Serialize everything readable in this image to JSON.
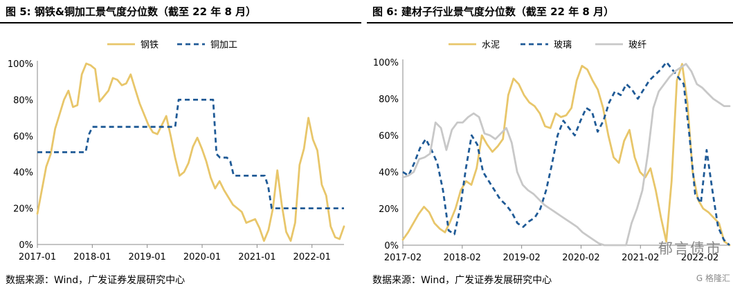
{
  "watermark": {
    "text": "郁言债市",
    "badge": "G 格隆汇"
  },
  "charts": [
    {
      "figure_title": "图 5:  钢铁&铜加工景气度分位数（截至 22 年 8 月）",
      "source": "数据来源：Wind，广发证券发展研究中心",
      "y_ticks": [
        "0%",
        "20%",
        "40%",
        "60%",
        "80%",
        "100%"
      ],
      "x_ticks": [
        "2017-01",
        "2018-01",
        "2019-01",
        "2020-01",
        "2021-01",
        "2022-01"
      ],
      "legend": [
        "钢铁",
        "铜加工"
      ]
    },
    {
      "figure_title": "图 6:  建材子行业景气度分位数（截至 22 年 8 月）",
      "source": "数据来源：Wind，广发证券发展研究中心",
      "y_ticks": [
        "0%",
        "20%",
        "40%",
        "60%",
        "80%",
        "100%"
      ],
      "x_ticks": [
        "2017-02",
        "2018-02",
        "2019-02",
        "2020-02",
        "2021-02",
        "2022-02"
      ],
      "legend": [
        "水泥",
        "玻璃",
        "玻纤"
      ]
    }
  ],
  "chart_data": [
    {
      "type": "line",
      "title": "图 5: 钢铁&铜加工景气度分位数（截至 22 年 8 月）",
      "x_start": "2017-01",
      "x_end": "2022-08",
      "x_ticks": [
        "2017-01",
        "2018-01",
        "2019-01",
        "2020-01",
        "2021-01",
        "2022-01"
      ],
      "ylim": [
        0,
        100
      ],
      "y_unit": "%",
      "legend_position": "top-center",
      "grid": false,
      "series": [
        {
          "name": "钢铁",
          "color": "#e8c66a",
          "style": "solid",
          "values": [
            17,
            30,
            43,
            50,
            64,
            72,
            80,
            85,
            76,
            77,
            94,
            100,
            99,
            97,
            79,
            82,
            85,
            92,
            91,
            88,
            89,
            94,
            86,
            78,
            72,
            66,
            62,
            61,
            66,
            71,
            60,
            48,
            38,
            40,
            45,
            54,
            59,
            53,
            46,
            37,
            31,
            35,
            30,
            26,
            22,
            20,
            18,
            12,
            13,
            14,
            9,
            2,
            8,
            20,
            41,
            22,
            7,
            2,
            12,
            44,
            53,
            70,
            58,
            52,
            33,
            27,
            10,
            4,
            3,
            10
          ]
        },
        {
          "name": "铜加工",
          "color": "#1f5a96",
          "style": "dashed",
          "values": [
            51,
            51,
            51,
            51,
            51,
            51,
            51,
            51,
            51,
            51,
            51,
            51,
            51,
            51,
            51,
            61,
            65,
            65,
            65,
            65,
            65,
            65,
            65,
            65,
            65,
            65,
            65,
            65,
            65,
            65,
            65,
            65,
            65,
            65,
            65,
            65,
            65,
            65,
            65,
            65,
            65,
            80,
            80,
            80,
            80,
            80,
            80,
            80,
            80,
            80,
            80,
            80,
            50,
            48,
            48,
            48,
            46,
            38,
            38,
            38,
            38,
            38,
            38,
            38,
            38,
            38,
            38,
            32,
            20,
            20,
            20,
            20,
            20,
            20,
            20,
            20,
            20,
            20,
            20,
            20,
            20,
            20,
            20,
            20,
            20,
            20,
            20,
            20,
            20,
            20
          ]
        }
      ]
    },
    {
      "type": "line",
      "title": "图 6: 建材子行业景气度分位数（截至 22 年 8 月）",
      "x_start": "2017-02",
      "x_end": "2022-08",
      "x_ticks": [
        "2017-02",
        "2018-02",
        "2019-02",
        "2020-02",
        "2021-02",
        "2022-02"
      ],
      "ylim": [
        0,
        100
      ],
      "y_unit": "%",
      "legend_position": "top-center",
      "grid": false,
      "series": [
        {
          "name": "水泥",
          "color": "#e8c66a",
          "style": "solid",
          "values": [
            3,
            7,
            12,
            17,
            21,
            18,
            12,
            9,
            7,
            13,
            20,
            30,
            35,
            33,
            42,
            60,
            55,
            51,
            54,
            58,
            82,
            91,
            88,
            82,
            78,
            76,
            72,
            65,
            64,
            72,
            70,
            71,
            75,
            90,
            98,
            96,
            90,
            85,
            75,
            60,
            48,
            45,
            57,
            63,
            48,
            40,
            37,
            42,
            30,
            15,
            2,
            35,
            90,
            99,
            78,
            40,
            25,
            20,
            18,
            15,
            12,
            2,
            0
          ]
        },
        {
          "name": "玻璃",
          "color": "#1f5a96",
          "style": "dashed",
          "values": [
            40,
            38,
            45,
            53,
            58,
            52,
            45,
            30,
            8,
            6,
            20,
            42,
            60,
            55,
            40,
            35,
            30,
            25,
            22,
            18,
            12,
            10,
            13,
            15,
            20,
            30,
            44,
            60,
            68,
            64,
            60,
            68,
            75,
            73,
            62,
            68,
            78,
            84,
            82,
            88,
            85,
            80,
            85,
            90,
            93,
            96,
            100,
            96,
            92,
            88,
            60,
            28,
            23,
            52,
            30,
            10,
            3,
            0
          ]
        },
        {
          "name": "玻纤",
          "color": "#c8c8c8",
          "style": "solid",
          "values": [
            37,
            38,
            40,
            47,
            48,
            50,
            67,
            64,
            52,
            63,
            67,
            67,
            70,
            72,
            70,
            61,
            60,
            58,
            61,
            64,
            56,
            40,
            33,
            30,
            28,
            25,
            22,
            20,
            18,
            16,
            14,
            12,
            10,
            7,
            5,
            3,
            1,
            0,
            0,
            0,
            0,
            0,
            12,
            20,
            30,
            50,
            75,
            84,
            88,
            92,
            95,
            97,
            99,
            95,
            88,
            86,
            83,
            80,
            78,
            76,
            76
          ]
        }
      ]
    }
  ]
}
